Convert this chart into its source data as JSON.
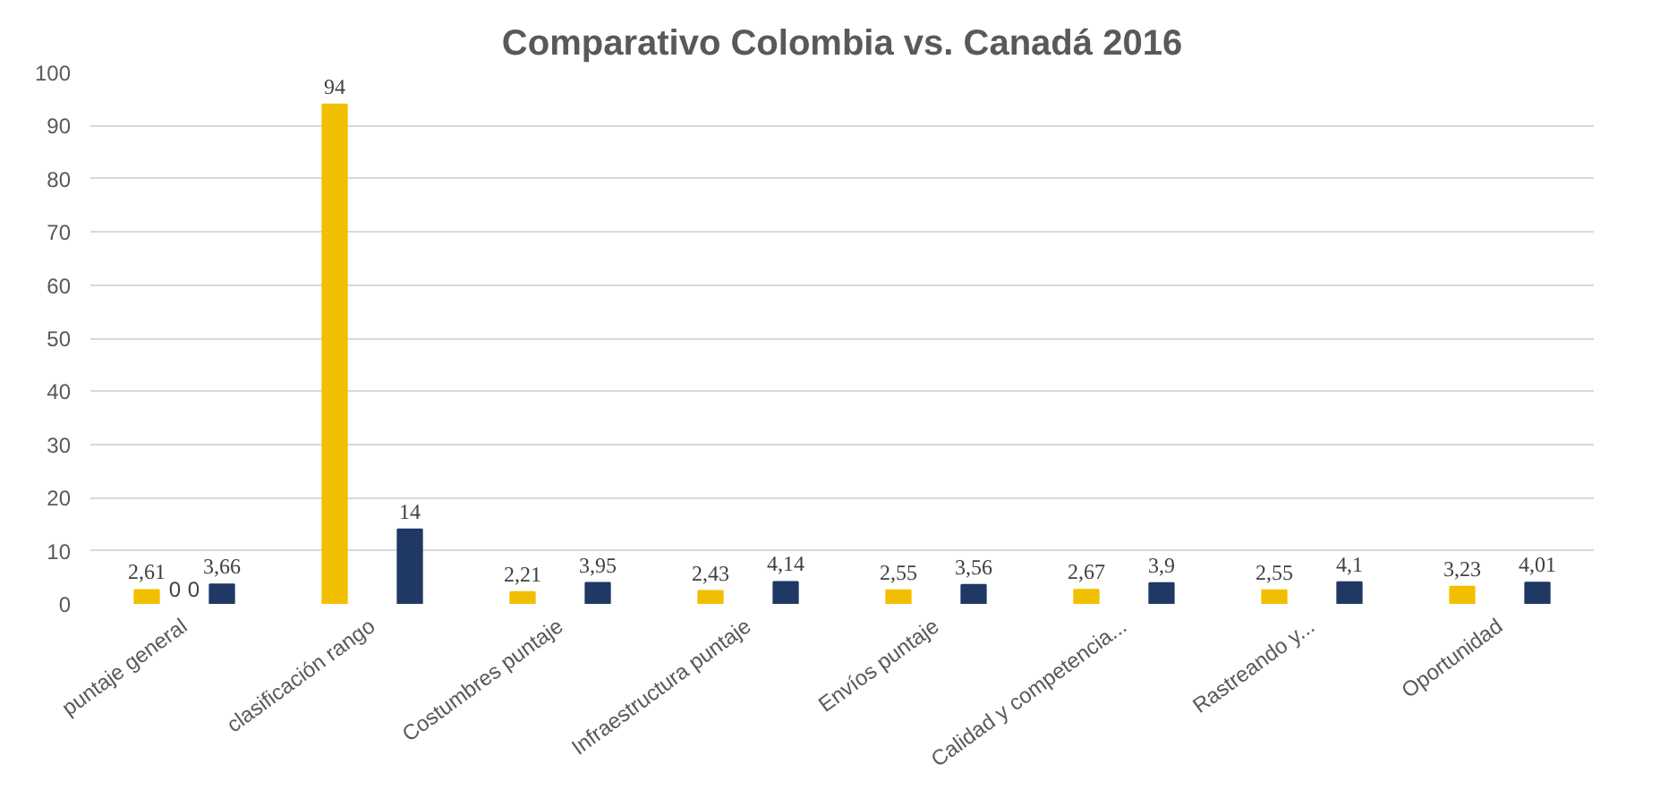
{
  "chart_data": {
    "type": "bar",
    "title": "Comparativo Colombia vs. Canadá 2016",
    "categories": [
      "puntaje general",
      "clasificación rango",
      "Costumbres puntaje",
      "Infraestructura puntaje",
      "Envíos puntaje",
      "Calidad y competencia...",
      "Rastreando y...",
      "Oportunidad"
    ],
    "series": [
      {
        "color": "#f2bf00",
        "values": [
          2.61,
          94,
          2.21,
          2.43,
          2.55,
          2.67,
          2.55,
          3.23
        ],
        "value_labels": [
          "2,61",
          "94",
          "2,21",
          "2,43",
          "2,55",
          "2,67",
          "2,55",
          "3,23"
        ]
      },
      {
        "color": "#1f3864",
        "values": [
          3.66,
          14,
          3.95,
          4.14,
          3.56,
          3.9,
          4.1,
          4.01
        ],
        "value_labels": [
          "3,66",
          "14",
          "3,95",
          "4,14",
          "3,56",
          "3,9",
          "4,1",
          "4,01"
        ]
      }
    ],
    "annotations": [
      "0",
      "0"
    ],
    "ylim": [
      0,
      100
    ],
    "yticks": [
      0,
      10,
      20,
      30,
      40,
      50,
      60,
      70,
      80,
      90,
      100
    ],
    "grid": "y"
  }
}
